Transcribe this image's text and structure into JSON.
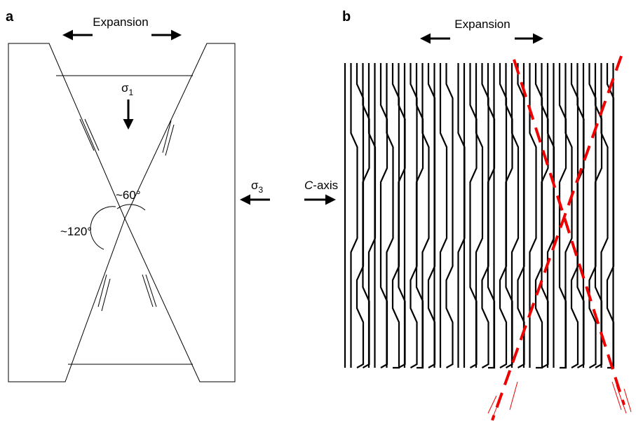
{
  "panel_a": {
    "label": "a",
    "expansion": "Expansion",
    "sigma1": {
      "symbol": "σ",
      "subscript": "1"
    },
    "angle_small": "~60°",
    "angle_large": "~120°"
  },
  "middle": {
    "sigma3": {
      "symbol": "σ",
      "subscript": "3"
    },
    "c_axis": {
      "italic": "C",
      "rest": "-axis"
    }
  },
  "panel_b": {
    "label": "b",
    "expansion": "Expansion"
  }
}
